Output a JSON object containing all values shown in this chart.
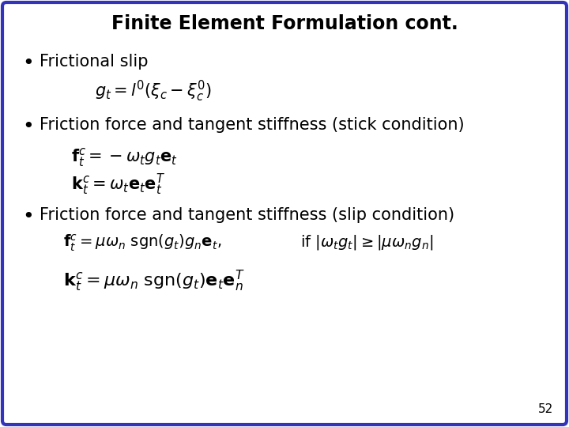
{
  "title": "Finite Element Formulation cont.",
  "title_fontsize": 17,
  "title_fontweight": "bold",
  "background_color": "#ffffff",
  "border_color": "#3333bb",
  "border_linewidth": 3,
  "page_number": "52",
  "bullet1_text": "Frictional slip",
  "bullet2_text": "Friction force and tangent stiffness (stick condition)",
  "bullet3_text": "Friction force and tangent stiffness (slip condition)",
  "formula1": "$g_t = l^0(\\xi_c - \\xi_c^0)$",
  "formula2a": "$\\mathbf{f}_t^c = -\\omega_t g_t \\mathbf{e}_t$",
  "formula2b": "$\\mathbf{k}_t^c = \\omega_t \\mathbf{e}_t \\mathbf{e}_t^T$",
  "formula3a": "$\\mathbf{f}_t^c = \\mu\\omega_n\\ \\mathrm{sgn}(g_t)g_n\\mathbf{e}_t,$",
  "formula3a_cond": "$\\mathrm{if}\\ |\\omega_t g_t| \\geq |\\mu\\omega_n g_n|$",
  "formula3b": "$\\mathbf{k}_t^c = \\mu\\omega_n\\ \\mathrm{sgn}(g_t)\\mathbf{e}_t\\mathbf{e}_n^T$",
  "text_color": "#000000",
  "bullet_color": "#000000",
  "formula_fontsize": 14,
  "bullet_fontsize": 15,
  "text_fontfamily": "DejaVu Sans"
}
